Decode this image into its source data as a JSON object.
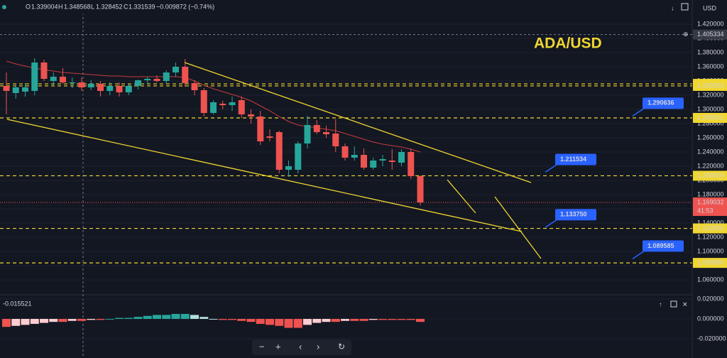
{
  "header": {
    "o_label": "O",
    "open": "1.339004",
    "h_label": "H",
    "high": "1.348568",
    "l_label": "L",
    "low": "1.328452",
    "c_label": "C",
    "close": "1.331539",
    "change": "−0.009872 (−0.74%)",
    "currency": "USD"
  },
  "chart_data": {
    "type": "candlestick",
    "title": "ADA/USD",
    "candles": {
      "open": [
        1.333,
        1.323,
        1.325,
        1.326,
        1.366,
        1.34,
        1.346,
        1.338,
        1.338,
        1.331,
        1.336,
        1.326,
        1.333,
        1.324,
        1.333,
        1.341,
        1.343,
        1.34,
        1.352,
        1.36,
        1.337,
        1.327,
        1.295,
        1.308,
        1.306,
        1.313,
        1.293,
        1.29,
        1.262,
        1.268,
        1.215,
        1.215,
        1.252,
        1.278,
        1.268,
        1.266,
        1.248,
        1.232,
        1.236,
        1.218,
        1.228,
        1.228,
        1.225,
        1.24,
        1.206
      ],
      "high": [
        1.352,
        1.335,
        1.337,
        1.372,
        1.37,
        1.352,
        1.358,
        1.345,
        1.345,
        1.341,
        1.34,
        1.338,
        1.338,
        1.336,
        1.342,
        1.346,
        1.348,
        1.355,
        1.366,
        1.371,
        1.341,
        1.33,
        1.313,
        1.312,
        1.318,
        1.318,
        1.3,
        1.298,
        1.272,
        1.27,
        1.228,
        1.255,
        1.291,
        1.285,
        1.277,
        1.286,
        1.252,
        1.248,
        1.245,
        1.232,
        1.236,
        1.244,
        1.244,
        1.245,
        1.207
      ],
      "low": [
        1.293,
        1.315,
        1.318,
        1.32,
        1.34,
        1.334,
        1.336,
        1.33,
        1.326,
        1.327,
        1.318,
        1.32,
        1.318,
        1.32,
        1.328,
        1.336,
        1.338,
        1.335,
        1.346,
        1.332,
        1.32,
        1.29,
        1.293,
        1.3,
        1.298,
        1.288,
        1.28,
        1.25,
        1.255,
        1.21,
        1.205,
        1.21,
        1.245,
        1.265,
        1.26,
        1.24,
        1.228,
        1.228,
        1.215,
        1.215,
        1.22,
        1.215,
        1.22,
        1.202,
        1.165
      ],
      "close": [
        1.326,
        1.331,
        1.331,
        1.366,
        1.343,
        1.346,
        1.338,
        1.338,
        1.331,
        1.336,
        1.326,
        1.333,
        1.324,
        1.333,
        1.341,
        1.343,
        1.34,
        1.352,
        1.36,
        1.337,
        1.327,
        1.295,
        1.31,
        1.306,
        1.31,
        1.293,
        1.29,
        1.255,
        1.26,
        1.215,
        1.22,
        1.252,
        1.278,
        1.268,
        1.265,
        1.248,
        1.232,
        1.236,
        1.218,
        1.228,
        1.23,
        1.226,
        1.24,
        1.206,
        1.169
      ]
    },
    "moving_average": [
      1.368,
      1.364,
      1.361,
      1.358,
      1.356,
      1.354,
      1.352,
      1.351,
      1.35,
      1.349,
      1.348,
      1.347,
      1.347,
      1.346,
      1.346,
      1.346,
      1.346,
      1.346,
      1.346,
      1.345,
      1.34,
      1.334,
      1.329,
      1.325,
      1.321,
      1.317,
      1.312,
      1.305,
      1.298,
      1.29,
      1.283,
      1.278,
      1.276,
      1.274,
      1.272,
      1.27,
      1.266,
      1.262,
      1.258,
      1.254,
      1.251,
      1.249,
      1.247,
      1.244,
      1.24
    ],
    "up_color": "#26a69a",
    "down_color": "#ef5350",
    "ylim": [
      1.039,
      1.454
    ],
    "yticks": [
      {
        "value": 1.42,
        "label": "1.420000"
      },
      {
        "value": 1.4,
        "label": "1.400000"
      },
      {
        "value": 1.38,
        "label": "1.380000"
      },
      {
        "value": 1.36,
        "label": "1.360000"
      },
      {
        "value": 1.34,
        "label": "1.340000"
      },
      {
        "value": 1.32,
        "label": "1.320000"
      },
      {
        "value": 1.3,
        "label": "1.300000"
      },
      {
        "value": 1.28,
        "label": "1.280000"
      },
      {
        "value": 1.26,
        "label": "1.260000"
      },
      {
        "value": 1.24,
        "label": "1.240000"
      },
      {
        "value": 1.22,
        "label": "1.220000"
      },
      {
        "value": 1.2,
        "label": "1.200000"
      },
      {
        "value": 1.18,
        "label": "1.180000"
      },
      {
        "value": 1.16,
        "label": "1.160000"
      },
      {
        "value": 1.14,
        "label": "1.140000"
      },
      {
        "value": 1.12,
        "label": "1.120000"
      },
      {
        "value": 1.1,
        "label": "1.100000"
      },
      {
        "value": 1.08,
        "label": "1.080000"
      },
      {
        "value": 1.06,
        "label": "1.060000"
      }
    ],
    "levels": [
      {
        "value": 1.33593,
        "label": "1.335930"
      },
      {
        "value": 1.333054,
        "label": "1.333054"
      },
      {
        "value": 1.288011,
        "label": "1.288011"
      },
      {
        "value": 1.20655,
        "label": "1.206550"
      },
      {
        "value": 1.132432,
        "label": "1.132432"
      },
      {
        "value": 1.08388,
        "label": "1.083880"
      }
    ],
    "crosshair": {
      "value": 1.405334,
      "label": "1.405334"
    },
    "last_price": {
      "value": 1.169032,
      "label": "1.169032",
      "countdown": "41:53"
    },
    "callouts": [
      {
        "value": 1.290636,
        "label": "1.290636"
      },
      {
        "value": 1.211534,
        "label": "1.211534"
      },
      {
        "value": 1.13375,
        "label": "1.133750"
      },
      {
        "value": 1.089585,
        "label": "1.089585"
      }
    ],
    "indicator": {
      "value": -0.015521,
      "histogram": [
        -0.008,
        -0.007,
        -0.006,
        -0.005,
        -0.004,
        -0.003,
        -0.003,
        -0.002,
        -0.002,
        -0.001,
        -0.001,
        0.0,
        0.001,
        0.001,
        0.002,
        0.003,
        0.004,
        0.004,
        0.005,
        0.005,
        0.004,
        0.002,
        0.0,
        -0.001,
        -0.001,
        -0.002,
        -0.003,
        -0.005,
        -0.006,
        -0.007,
        -0.009,
        -0.009,
        -0.006,
        -0.004,
        -0.003,
        -0.003,
        -0.002,
        -0.002,
        -0.002,
        -0.001,
        -0.001,
        -0.001,
        -0.001,
        -0.001,
        -0.003
      ],
      "ylim": [
        -0.0393,
        0.0221
      ],
      "yticks": [
        {
          "value": 0.02,
          "label": "0.020000"
        },
        {
          "value": 0,
          "label": "0.000000"
        },
        {
          "value": -0.02,
          "label": "-0.020000"
        }
      ]
    }
  }
}
